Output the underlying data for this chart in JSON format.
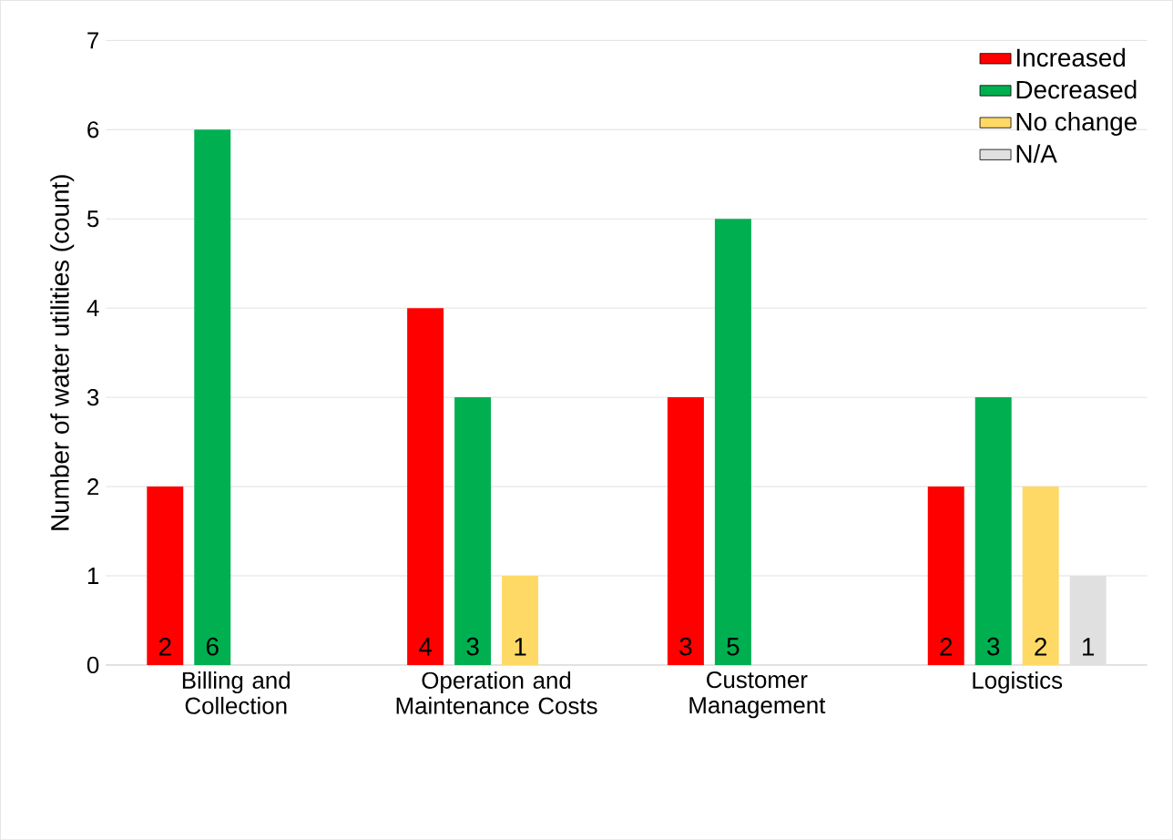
{
  "chart_data": {
    "type": "bar",
    "ylabel": "Number of water utilities (count)",
    "categories": [
      "Billing and Collection",
      "Operation and Maintenance Costs",
      "Customer Management",
      "Logistics"
    ],
    "series": [
      {
        "name": "Increased",
        "color": "#ff0000",
        "values": [
          2,
          4,
          3,
          2
        ],
        "value_labels": [
          "2",
          "4",
          "3",
          "2"
        ]
      },
      {
        "name": "Decreased",
        "color": "#00b050",
        "values": [
          6,
          3,
          5,
          3
        ],
        "value_labels": [
          "6",
          "3",
          "5",
          "3"
        ]
      },
      {
        "name": "No change",
        "color": "#ffd966",
        "values": [
          0,
          1,
          0,
          2
        ],
        "value_labels": [
          null,
          "1",
          null,
          "2"
        ]
      },
      {
        "name": "N/A",
        "color": "#e0e0e0",
        "values": [
          0,
          0,
          0,
          1
        ],
        "value_labels": [
          null,
          null,
          null,
          "1"
        ]
      }
    ],
    "ylim": [
      0,
      7
    ],
    "yticks": [
      0,
      1,
      2,
      3,
      4,
      5,
      6,
      7
    ],
    "grid": "y",
    "legend": "top right"
  }
}
